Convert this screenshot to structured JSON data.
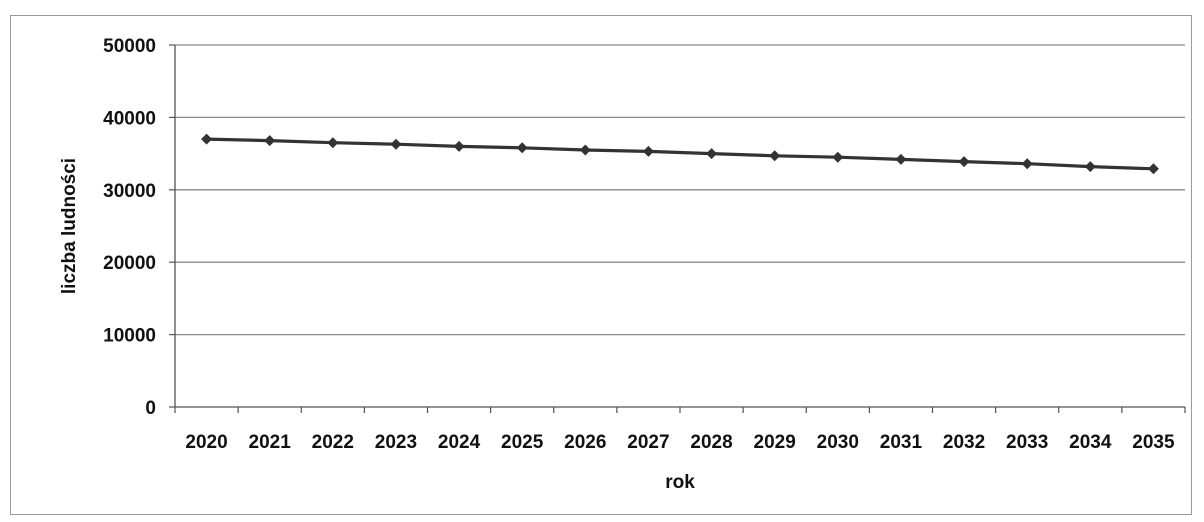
{
  "chart_data": {
    "type": "line",
    "title": "",
    "xlabel": "rok",
    "ylabel": "liczba ludności",
    "categories": [
      "2020",
      "2021",
      "2022",
      "2023",
      "2024",
      "2025",
      "2026",
      "2027",
      "2028",
      "2029",
      "2030",
      "2031",
      "2032",
      "2033",
      "2034",
      "2035"
    ],
    "series": [
      {
        "values": [
          37000,
          36800,
          36500,
          36300,
          36000,
          35800,
          35500,
          35300,
          35000,
          34700,
          34500,
          34200,
          33900,
          33600,
          33200,
          32900
        ],
        "color": "#333333",
        "marker": "diamond"
      }
    ],
    "ylim": [
      0,
      50000
    ],
    "yticks": [
      0,
      10000,
      20000,
      30000,
      40000,
      50000
    ],
    "grid": "horizontal",
    "legend": "none"
  }
}
